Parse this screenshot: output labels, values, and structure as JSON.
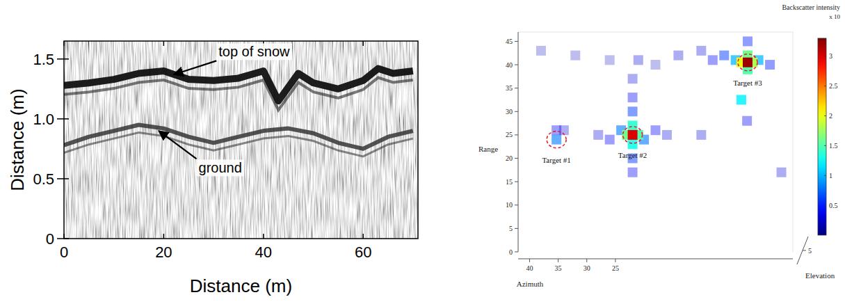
{
  "chart_data": [
    {
      "type": "line",
      "x_label": "Distance (m)",
      "y_label": "Distance (m)",
      "xlim": [
        0,
        71
      ],
      "ylim": [
        0,
        1.65
      ],
      "xticks": [
        0,
        20,
        40,
        60
      ],
      "yticks": [
        0,
        0.5,
        {
          "value": 1,
          "label": "1.0"
        },
        {
          "value": 1.5,
          "label": "1.5"
        }
      ],
      "series": [
        {
          "color": "#111111",
          "x": [
            0,
            5,
            10,
            15,
            20,
            25,
            30,
            35,
            40,
            43,
            47,
            50,
            55,
            60,
            63,
            66,
            70
          ],
          "values": [
            1.28,
            1.3,
            1.33,
            1.38,
            1.4,
            1.33,
            1.32,
            1.34,
            1.4,
            1.15,
            1.38,
            1.3,
            1.25,
            1.32,
            1.42,
            1.38,
            1.4
          ]
        },
        {
          "color": "#2a2a2a",
          "x": [
            0,
            5,
            10,
            15,
            20,
            25,
            30,
            35,
            40,
            45,
            50,
            55,
            60,
            65,
            70
          ],
          "values": [
            0.78,
            0.85,
            0.9,
            0.95,
            0.92,
            0.85,
            0.8,
            0.85,
            0.9,
            0.92,
            0.88,
            0.8,
            0.75,
            0.85,
            0.9
          ]
        }
      ],
      "annotations": [
        {
          "text": "top of snow",
          "x": 22,
          "y": 1.37,
          "text_x": 31,
          "text_y": 1.52
        },
        {
          "text": "ground",
          "x": 19,
          "y": 0.9,
          "text_x": 27,
          "text_y": 0.55
        }
      ]
    },
    {
      "type": "scatter",
      "x_label": "Azimuth",
      "y_label": "Range",
      "z_label": "Elevation",
      "xlim": [
        42,
        -6
      ],
      "ylim": [
        0,
        47
      ],
      "zlim": [
        0,
        10
      ],
      "xticks": [
        40,
        35,
        30,
        25
      ],
      "yticks": [
        0,
        5,
        10,
        15,
        20,
        25,
        30,
        35,
        40,
        45
      ],
      "zticks": [
        5
      ],
      "cells": {
        "azimuth": [
          38,
          32,
          26,
          18,
          34,
          10,
          28,
          16,
          26,
          18,
          22,
          22,
          22,
          21,
          2,
          -4,
          14,
          10,
          8,
          -2,
          6,
          1.9,
          24,
          20,
          22,
          22,
          35.3,
          4,
          0,
          3,
          22,
          22,
          23,
          21,
          35.3,
          1.9,
          1.9,
          1,
          3,
          22,
          1.9
        ],
        "range": [
          43,
          42,
          41,
          40,
          26,
          25,
          25,
          25,
          24,
          26,
          33,
          17,
          37,
          41,
          28,
          17,
          42,
          43,
          41,
          40,
          42,
          45,
          26,
          24,
          30,
          20,
          26,
          41,
          41,
          32.5,
          27,
          23,
          25,
          25,
          24,
          42,
          39,
          40.5,
          40.5,
          25,
          40.5
        ],
        "intensity": [
          0.2,
          0.2,
          0.2,
          0.2,
          0.3,
          0.3,
          0.3,
          0.3,
          0.4,
          0.4,
          0.4,
          0.4,
          0.3,
          0.3,
          0.4,
          0.3,
          0.3,
          0.3,
          0.4,
          0.5,
          0.6,
          0.5,
          0.8,
          0.8,
          0.6,
          0.6,
          0.4,
          1.0,
          1.0,
          1.2,
          1.4,
          1.3,
          1.6,
          1.5,
          0.8,
          1.6,
          1.5,
          1.8,
          2.0,
          3.0,
          3.2
        ]
      },
      "targets": [
        {
          "label": "Target #1",
          "azimuth": 35.3,
          "range": 24
        },
        {
          "label": "Target #2",
          "azimuth": 22,
          "range": 25
        },
        {
          "label": "Target #3",
          "azimuth": 1.9,
          "range": 40.5
        }
      ],
      "colorbar": {
        "label": "Backscatter intensity",
        "multiplier": "x 10",
        "lim": [
          0,
          3.3
        ],
        "ticks": [
          0.5,
          1,
          1.5,
          2,
          2.5,
          3
        ]
      }
    }
  ]
}
